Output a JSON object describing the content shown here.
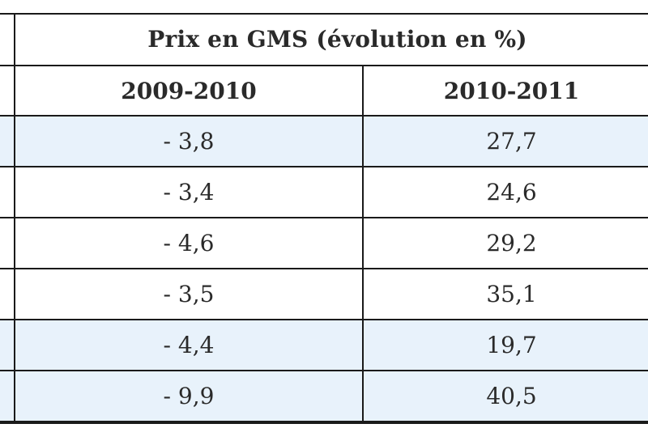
{
  "table": {
    "title": "Prix en GMS (évolution en %)",
    "columns": [
      "2009-2010",
      "2010-2011"
    ],
    "rows": [
      {
        "c1": "- 3,8",
        "c2": "27,7",
        "shaded": true
      },
      {
        "c1": "- 3,4",
        "c2": "24,6",
        "shaded": false
      },
      {
        "c1": "- 4,6",
        "c2": "29,2",
        "shaded": false
      },
      {
        "c1": "- 3,5",
        "c2": "35,1",
        "shaded": false
      },
      {
        "c1": "- 4,4",
        "c2": "19,7",
        "shaded": true
      },
      {
        "c1": "- 9,9",
        "c2": "40,5",
        "shaded": true
      }
    ],
    "colors": {
      "shaded_row": "#e8f2fb",
      "border": "#1a1a1a",
      "text": "#2a2a2a"
    }
  }
}
